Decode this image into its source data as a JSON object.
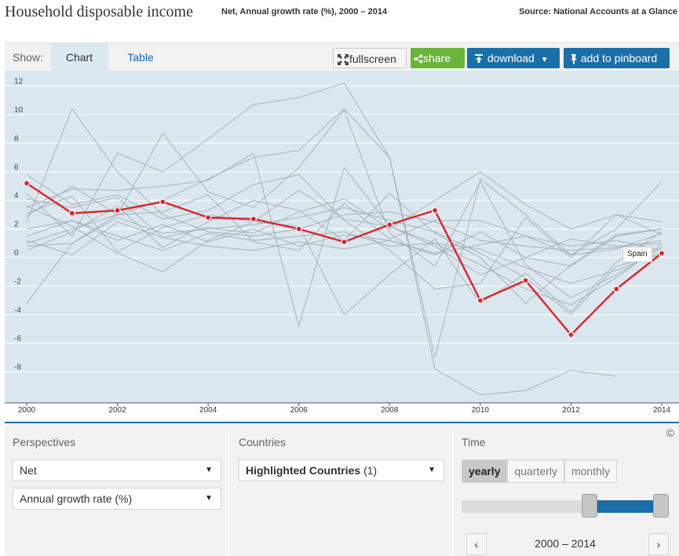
{
  "header": {
    "title": "Household disposable income",
    "subtitle": "Net, Annual growth rate (%), 2000 – 2014",
    "source": "Source: National Accounts at a Glance"
  },
  "toolbar": {
    "show_label": "Show:",
    "tab_chart": "Chart",
    "tab_table": "Table",
    "fullscreen": "fullscreen",
    "share": "share",
    "download": "download",
    "pinboard": "add to pinboard"
  },
  "colors": {
    "plot_bg": "#dae7ef",
    "grey_lines": "#a3adb3",
    "highlight": "#d9262c",
    "accent": "#1b6fa8",
    "share_green": "#6bb33b"
  },
  "icons": [
    "fullscreen-icon",
    "share-icon",
    "download-icon",
    "caret-down-icon",
    "pin-icon",
    "chevron-left-icon",
    "chevron-right-icon"
  ],
  "chart_data": {
    "type": "line",
    "title": "",
    "xlabel": "",
    "ylabel": "",
    "xlim": [
      2000,
      2014
    ],
    "ylim": [
      -10,
      13
    ],
    "yticks": [
      -8,
      -6,
      -4,
      -2,
      0,
      2,
      4,
      6,
      8,
      10,
      12
    ],
    "xticks": [
      2000,
      2002,
      2004,
      2006,
      2008,
      2010,
      2012,
      2014
    ],
    "grid": true,
    "x": [
      2000,
      2001,
      2002,
      2003,
      2004,
      2005,
      2006,
      2007,
      2008,
      2009,
      2010,
      2011,
      2012,
      2013,
      2014
    ],
    "highlight_series": {
      "name": "Spain",
      "values": [
        5.2,
        3.1,
        3.3,
        3.9,
        2.8,
        2.7,
        2.0,
        1.1,
        2.3,
        3.3,
        -3.0,
        -1.6,
        -5.4,
        -2.2,
        0.3
      ]
    },
    "background_series": [
      {
        "values": [
          -3.2,
          1.0,
          3.0,
          4.0,
          5.5,
          7.0,
          7.5,
          10.4,
          7.0,
          -7.0,
          5.5,
          3.0,
          0.2,
          2.0,
          5.3
        ]
      },
      {
        "values": [
          2.5,
          10.4,
          6.0,
          3.0,
          1.8,
          1.5,
          2.0,
          3.0,
          3.2,
          2.5,
          1.2,
          0.8,
          0.5,
          0.7,
          1.2
        ]
      },
      {
        "values": [
          4.5,
          1.5,
          7.3,
          6.0,
          8.3,
          10.7,
          11.2,
          12.2,
          7.0,
          -7.8,
          -9.6,
          -9.3,
          -7.9,
          -8.3,
          null
        ]
      },
      {
        "values": [
          3.5,
          4.8,
          4.7,
          5.0,
          5.4,
          7.3,
          -4.8,
          6.3,
          2.2,
          0.8,
          -1.2,
          0.0,
          -0.6,
          1.5,
          2.0
        ]
      },
      {
        "values": [
          1.0,
          2.0,
          3.0,
          8.7,
          4.6,
          3.5,
          6.3,
          10.3,
          1.7,
          -0.6,
          5.3,
          -0.5,
          -2.8,
          -1.2,
          0.7
        ]
      },
      {
        "values": [
          0.8,
          1.0,
          2.8,
          1.7,
          2.0,
          2.3,
          2.8,
          3.5,
          2.6,
          1.8,
          0.3,
          -1.4,
          -4.0,
          -0.6,
          0.2
        ]
      },
      {
        "values": [
          2.0,
          2.6,
          1.5,
          0.5,
          1.7,
          1.2,
          1.5,
          1.8,
          0.8,
          1.0,
          0.6,
          -0.7,
          -1.8,
          -0.9,
          0.4
        ]
      },
      {
        "values": [
          3.1,
          4.3,
          0.4,
          2.1,
          3.0,
          2.5,
          4.7,
          2.7,
          2.2,
          1.0,
          -0.5,
          -2.2,
          -3.3,
          -1.4,
          0.9
        ]
      },
      {
        "values": [
          1.5,
          2.6,
          1.2,
          2.3,
          1.1,
          2.0,
          0.8,
          1.6,
          1.2,
          0.2,
          1.8,
          0.0,
          1.3,
          0.8,
          1.0
        ]
      },
      {
        "values": [
          4.1,
          3.5,
          4.2,
          1.4,
          2.1,
          1.7,
          3.2,
          4.1,
          2.0,
          4.0,
          6.0,
          3.7,
          2.0,
          3.0,
          2.5
        ]
      },
      {
        "values": [
          5.8,
          3.7,
          4.4,
          2.7,
          3.3,
          5.1,
          5.8,
          2.6,
          0.5,
          -2.2,
          -1.8,
          2.8,
          0.0,
          3.0,
          1.6
        ]
      },
      {
        "values": [
          0.5,
          1.8,
          3.6,
          0.7,
          2.5,
          4.0,
          3.3,
          1.2,
          4.5,
          1.7,
          0.0,
          -3.2,
          -0.5,
          1.6,
          2.0
        ]
      },
      {
        "values": [
          2.9,
          5.0,
          3.0,
          3.2,
          4.4,
          1.1,
          0.5,
          3.8,
          1.3,
          2.6,
          2.6,
          1.5,
          0.2,
          0.6,
          1.7
        ]
      },
      {
        "values": [
          1.2,
          0.2,
          2.5,
          1.4,
          0.8,
          0.5,
          1.1,
          0.6,
          1.2,
          0.3,
          0.9,
          1.5,
          0.8,
          1.2,
          0.5
        ]
      },
      {
        "values": [
          3.6,
          2.2,
          0.3,
          -1.0,
          1.2,
          2.5,
          2.2,
          -4.0,
          -1.2,
          1.3,
          -3.2,
          -1.1,
          -3.8,
          -0.3,
          1.8
        ]
      }
    ]
  },
  "controls": {
    "perspectives_label": "Perspectives",
    "perspective_1": "Net",
    "perspective_2": "Annual growth rate (%)",
    "countries_label": "Countries",
    "countries_value": "Highlighted Countries",
    "countries_count": "(1)",
    "time_label": "Time",
    "time_yearly": "yearly",
    "time_quarterly": "quarterly",
    "time_monthly": "monthly",
    "range_from": 2000,
    "range_to": 2014,
    "range_text": "2000 – 2014",
    "copyright": "©"
  }
}
